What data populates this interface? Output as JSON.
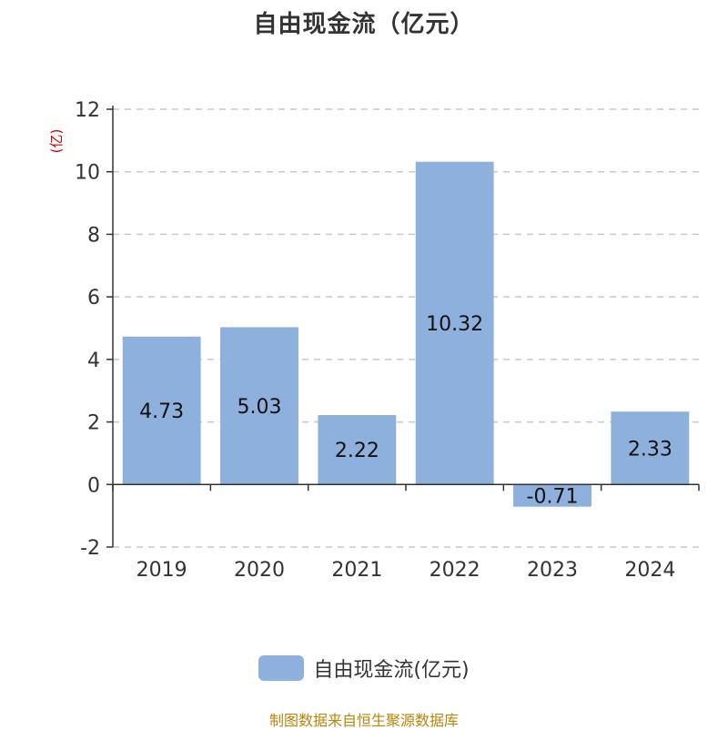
{
  "colors": {
    "bar": "#8eb0dc",
    "axis": "#333333",
    "grid": "#c8c8c8",
    "unit": "#cc0000",
    "source": "#b8860b"
  },
  "source_note": "制图数据来自恒生聚源数据库",
  "chart_data": {
    "type": "bar",
    "title": "自由现金流（亿元）",
    "unit_label": "(亿)",
    "categories": [
      "2019",
      "2020",
      "2021",
      "2022",
      "2023",
      "2024"
    ],
    "series": [
      {
        "name": "自由现金流(亿元)",
        "values": [
          4.73,
          5.03,
          2.22,
          10.32,
          -0.71,
          2.33
        ]
      }
    ],
    "data_labels": [
      "4.73",
      "5.03",
      "2.22",
      "10.32",
      "-0.71",
      "2.33"
    ],
    "ylim": [
      -2,
      12
    ],
    "yticks": [
      -2,
      0,
      2,
      4,
      6,
      8,
      10,
      12
    ],
    "grid": true,
    "legend_position": "bottom"
  }
}
